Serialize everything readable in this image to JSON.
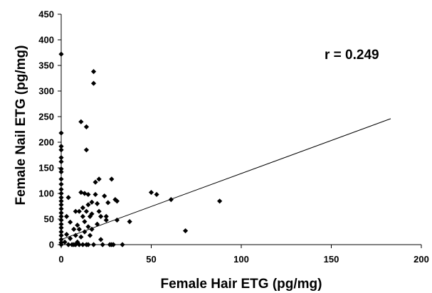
{
  "chart_data": {
    "type": "scatter",
    "xlabel": "Female Hair ETG (pg/mg)",
    "ylabel": "Female Nail ETG (pg/mg)",
    "xlim": [
      0,
      200
    ],
    "ylim": [
      0,
      450
    ],
    "xticks": [
      0,
      50,
      100,
      150,
      200
    ],
    "yticks": [
      0,
      50,
      100,
      150,
      200,
      250,
      300,
      350,
      400,
      450
    ],
    "grid": false,
    "annotation": "r = 0.249",
    "marker": "diamond",
    "marker_color": "#000000",
    "trendline": {
      "x": [
        0,
        183
      ],
      "y": [
        10,
        246
      ]
    },
    "points": [
      [
        0,
        372
      ],
      [
        0,
        218
      ],
      [
        0,
        192
      ],
      [
        0,
        185
      ],
      [
        0,
        170
      ],
      [
        0,
        162
      ],
      [
        0,
        148
      ],
      [
        0,
        142
      ],
      [
        0,
        128
      ],
      [
        0,
        118
      ],
      [
        0,
        108
      ],
      [
        0,
        100
      ],
      [
        0,
        92
      ],
      [
        0,
        85
      ],
      [
        0,
        78
      ],
      [
        0,
        70
      ],
      [
        0,
        62
      ],
      [
        0,
        55
      ],
      [
        0,
        48
      ],
      [
        0,
        40
      ],
      [
        0,
        33
      ],
      [
        0,
        25
      ],
      [
        0,
        18
      ],
      [
        0,
        10
      ],
      [
        0,
        4
      ],
      [
        0,
        0
      ],
      [
        2,
        5
      ],
      [
        3,
        55
      ],
      [
        3,
        20
      ],
      [
        4,
        0
      ],
      [
        4,
        92
      ],
      [
        5,
        44
      ],
      [
        5,
        12
      ],
      [
        6,
        0
      ],
      [
        7,
        30
      ],
      [
        7,
        0
      ],
      [
        8,
        65
      ],
      [
        8,
        18
      ],
      [
        8,
        0
      ],
      [
        9,
        38
      ],
      [
        9,
        5
      ],
      [
        10,
        0
      ],
      [
        10,
        65
      ],
      [
        10,
        30
      ],
      [
        11,
        240
      ],
      [
        11,
        102
      ],
      [
        11,
        15
      ],
      [
        12,
        0
      ],
      [
        12,
        55
      ],
      [
        12,
        72
      ],
      [
        13,
        100
      ],
      [
        13,
        25
      ],
      [
        13,
        45
      ],
      [
        14,
        230
      ],
      [
        14,
        185
      ],
      [
        14,
        0
      ],
      [
        14,
        65
      ],
      [
        15,
        98
      ],
      [
        15,
        78
      ],
      [
        15,
        35
      ],
      [
        15,
        0
      ],
      [
        16,
        18
      ],
      [
        16,
        55
      ],
      [
        17,
        83
      ],
      [
        17,
        60
      ],
      [
        17,
        30
      ],
      [
        18,
        338
      ],
      [
        18,
        315
      ],
      [
        18,
        0
      ],
      [
        19,
        122
      ],
      [
        19,
        98
      ],
      [
        20,
        80
      ],
      [
        20,
        40
      ],
      [
        21,
        128
      ],
      [
        21,
        65
      ],
      [
        22,
        55
      ],
      [
        22,
        10
      ],
      [
        23,
        0
      ],
      [
        24,
        95
      ],
      [
        25,
        48
      ],
      [
        25,
        55
      ],
      [
        26,
        82
      ],
      [
        27,
        0
      ],
      [
        28,
        128
      ],
      [
        28,
        0
      ],
      [
        29,
        0
      ],
      [
        30,
        88
      ],
      [
        31,
        85
      ],
      [
        31,
        48
      ],
      [
        34,
        0
      ],
      [
        38,
        45
      ],
      [
        50,
        102
      ],
      [
        53,
        98
      ],
      [
        61,
        88
      ],
      [
        69,
        27
      ],
      [
        88,
        85
      ]
    ]
  }
}
